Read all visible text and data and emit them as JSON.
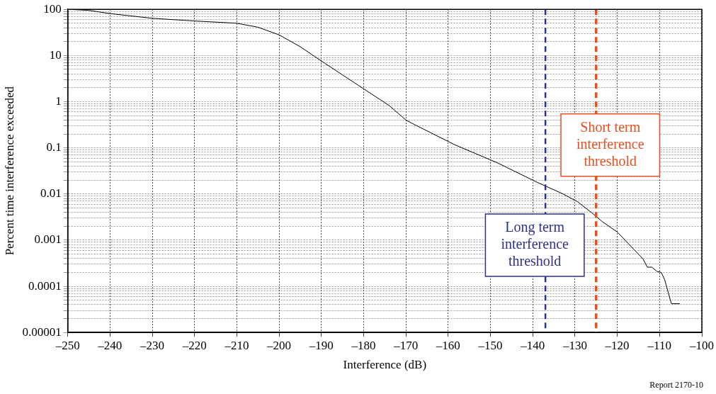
{
  "chart_data": {
    "type": "line",
    "xlabel": "Interference (dB)",
    "ylabel": "Percent time interference exceeded",
    "annotations": [
      "Report 2170-10"
    ],
    "x": [
      -250,
      -245,
      -240,
      -230,
      -220,
      -210,
      -205,
      -200,
      -195,
      -190,
      -185,
      -180,
      -174,
      -170,
      -168,
      -158.3,
      -148.5,
      -139,
      -133,
      -129.4,
      -126,
      -123.5,
      -120,
      -113.9,
      -112.9,
      -111.8,
      -110.6,
      -109.6,
      -108.8,
      -107.2,
      -105.2
    ],
    "series": [
      {
        "color": "#000000",
        "values": [
          100,
          95,
          81,
          64,
          56,
          50,
          41,
          28,
          15.5,
          7.6,
          3.8,
          1.9,
          0.83,
          0.4,
          0.32,
          0.115,
          0.048,
          0.018,
          0.0102,
          0.0068,
          0.0039,
          0.0025,
          0.0015,
          0.00039,
          0.00026,
          0.00026,
          0.00021,
          0.0002,
          0.00014,
          4.2e-05,
          4.2e-05
        ]
      }
    ],
    "log": "y",
    "grid": true,
    "legend": false,
    "marker": "none",
    "line_style": "solid",
    "xlim": [
      -250,
      -100
    ],
    "xticks": [
      {
        "value": -250,
        "label": "–250"
      },
      {
        "value": -240,
        "label": "–240"
      },
      {
        "value": -230,
        "label": "–230"
      },
      {
        "value": -220,
        "label": "–220"
      },
      {
        "value": -210,
        "label": "–210"
      },
      {
        "value": -200,
        "label": "–200"
      },
      {
        "value": -190,
        "label": "–190"
      },
      {
        "value": -180,
        "label": "–180"
      },
      {
        "value": -170,
        "label": "–170"
      },
      {
        "value": -160,
        "label": "–160"
      },
      {
        "value": -150,
        "label": "–150"
      },
      {
        "value": -140,
        "label": "–140"
      },
      {
        "value": -130,
        "label": "–130"
      },
      {
        "value": -120,
        "label": "–120"
      },
      {
        "value": -110,
        "label": "–110"
      },
      {
        "value": -100,
        "label": "–100"
      }
    ],
    "ylim": [
      1e-05,
      100
    ],
    "yticks": [
      {
        "value": 1e-05,
        "label": "0.00001"
      },
      {
        "value": 2e-05,
        "label": null
      },
      {
        "value": 3e-05,
        "label": null
      },
      {
        "value": 4e-05,
        "label": null
      },
      {
        "value": 5e-05,
        "label": null
      },
      {
        "value": 6e-05,
        "label": null
      },
      {
        "value": 7e-05,
        "label": null
      },
      {
        "value": 8e-05,
        "label": null
      },
      {
        "value": 9e-05,
        "label": null
      },
      {
        "value": 0.0001,
        "label": "0.0001"
      },
      {
        "value": 0.0002,
        "label": null
      },
      {
        "value": 0.0003,
        "label": null
      },
      {
        "value": 0.0004,
        "label": null
      },
      {
        "value": 0.0005,
        "label": null
      },
      {
        "value": 0.0006,
        "label": null
      },
      {
        "value": 0.0007,
        "label": null
      },
      {
        "value": 0.0008,
        "label": null
      },
      {
        "value": 0.0009,
        "label": null
      },
      {
        "value": 0.001,
        "label": "0.001"
      },
      {
        "value": 0.002,
        "label": null
      },
      {
        "value": 0.003,
        "label": null
      },
      {
        "value": 0.004,
        "label": null
      },
      {
        "value": 0.005,
        "label": null
      },
      {
        "value": 0.006,
        "label": null
      },
      {
        "value": 0.007,
        "label": null
      },
      {
        "value": 0.008,
        "label": null
      },
      {
        "value": 0.009,
        "label": null
      },
      {
        "value": 0.01,
        "label": "0.01"
      },
      {
        "value": 0.02,
        "label": null
      },
      {
        "value": 0.03,
        "label": null
      },
      {
        "value": 0.04,
        "label": null
      },
      {
        "value": 0.05,
        "label": null
      },
      {
        "value": 0.06,
        "label": null
      },
      {
        "value": 0.07,
        "label": null
      },
      {
        "value": 0.08,
        "label": null
      },
      {
        "value": 0.09,
        "label": null
      },
      {
        "value": 0.1,
        "label": "0.1"
      },
      {
        "value": 0.2,
        "label": null
      },
      {
        "value": 0.3,
        "label": null
      },
      {
        "value": 0.4,
        "label": null
      },
      {
        "value": 0.5,
        "label": null
      },
      {
        "value": 0.6,
        "label": null
      },
      {
        "value": 0.7,
        "label": null
      },
      {
        "value": 0.8,
        "label": null
      },
      {
        "value": 0.9,
        "label": null
      },
      {
        "value": 1,
        "label": "1"
      },
      {
        "value": 2,
        "label": null
      },
      {
        "value": 3,
        "label": null
      },
      {
        "value": 4,
        "label": null
      },
      {
        "value": 5,
        "label": null
      },
      {
        "value": 6,
        "label": null
      },
      {
        "value": 7,
        "label": null
      },
      {
        "value": 8,
        "label": null
      },
      {
        "value": 9,
        "label": null
      },
      {
        "value": 10,
        "label": "10"
      },
      {
        "value": 20,
        "label": null
      },
      {
        "value": 30,
        "label": null
      },
      {
        "value": 40,
        "label": null
      },
      {
        "value": 50,
        "label": null
      },
      {
        "value": 60,
        "label": null
      },
      {
        "value": 70,
        "label": null
      },
      {
        "value": 80,
        "label": null
      },
      {
        "value": 90,
        "label": null
      },
      {
        "value": 100,
        "label": "100"
      }
    ],
    "ref_lines": [
      {
        "axis": "x",
        "value": -137,
        "label": "Long term\ninterference\nthreshold",
        "color": "#2e3192",
        "line_style": "dashed"
      },
      {
        "axis": "x",
        "value": -125,
        "label": "Short term\ninterference\nthreshold",
        "color": "#e8501e",
        "line_style": "dashed"
      }
    ]
  }
}
